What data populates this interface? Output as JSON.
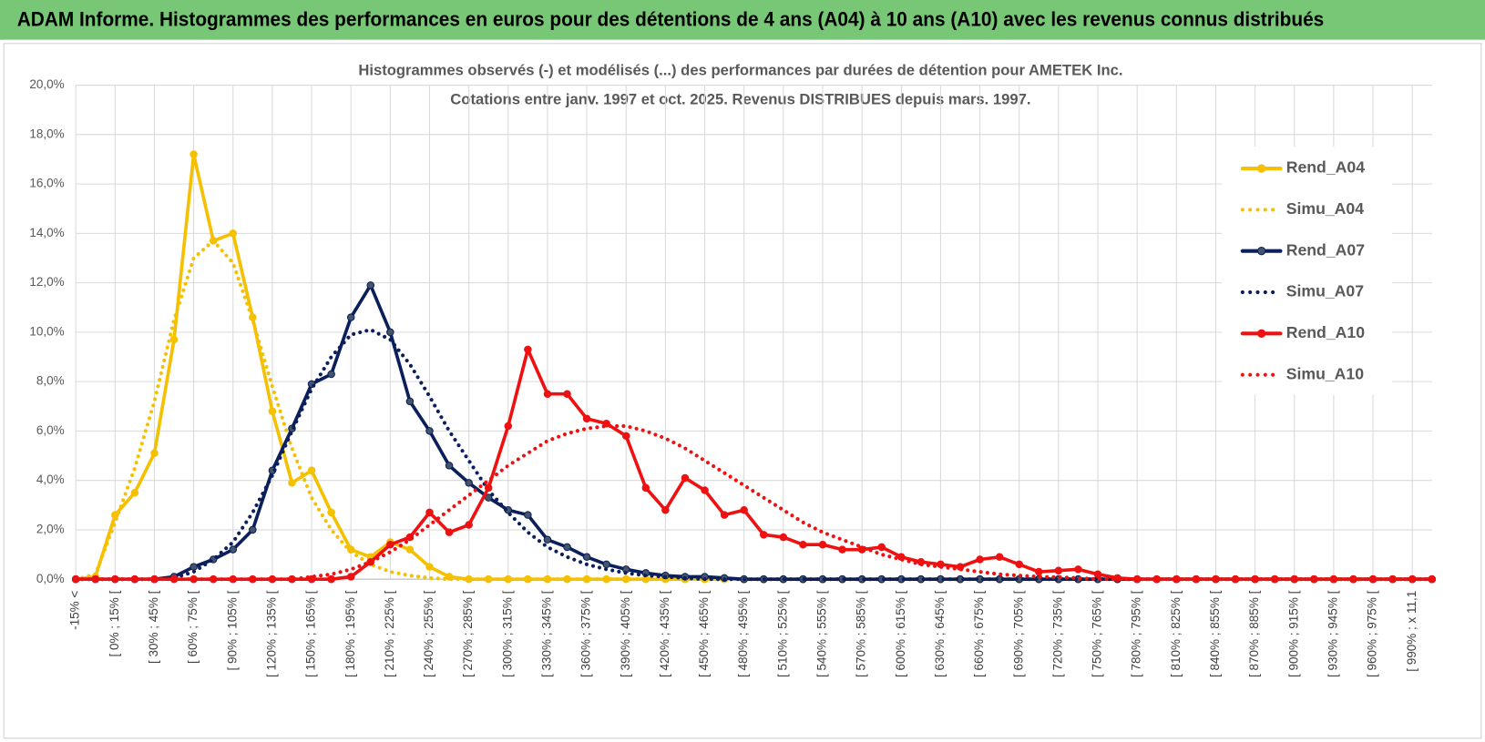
{
  "header": "ADAM Informe. Histogrammes des performances en euros pour des détentions de 4 ans (A04) à 10 ans (A10) avec les revenus connus distribués",
  "chart_data": {
    "type": "line",
    "title": "Histogrammes observés (-) et modélisés (...) des performances par durées de détention pour AMETEK Inc.",
    "subtitle": "Cotations entre janv. 1997 et oct. 2025.  Revenus DISTRIBUES depuis mars. 1997.",
    "categories": [
      "-15% <",
      null,
      "[ 0% ; 15% [",
      null,
      "[ 30% ; 45% [",
      null,
      "[ 60% ; 75% [",
      null,
      "[ 90% ; 105% [",
      null,
      "[ 120% ; 135% [",
      null,
      "[ 150% ; 165% [",
      null,
      "[ 180% ; 195% [",
      null,
      "[ 210% ; 225% [",
      null,
      "[ 240% ; 255% [",
      null,
      "[ 270% ; 285% [",
      null,
      "[ 300% ; 315% [",
      null,
      "[ 330% ; 345% [",
      null,
      "[ 360% ; 375% [",
      null,
      "[ 390% ; 405% [",
      null,
      "[ 420% ; 435% [",
      null,
      "[ 450% ; 465% [",
      null,
      "[ 480% ; 495% [",
      null,
      "[ 510% ; 525% [",
      null,
      "[ 540% ; 555% [",
      null,
      "[ 570% ; 585% [",
      null,
      "[ 600% ; 615% [",
      null,
      "[ 630% ; 645% [",
      null,
      "[ 660% ; 675% [",
      null,
      "[ 690% ; 705% [",
      null,
      "[ 720% ; 735% [",
      null,
      "[ 750% ; 765% [",
      null,
      "[ 780% ; 795% [",
      null,
      "[ 810% ; 825% [",
      null,
      "[ 840% ; 855% [",
      null,
      "[ 870% ; 885% [",
      null,
      "[ 900% ; 915% [",
      null,
      "[ 930% ; 945% [",
      null,
      "[ 960% ; 975% [",
      null,
      "[ 990% ; x 11,1",
      null
    ],
    "series": [
      {
        "name": "Rend_A04",
        "color": "#f5c000",
        "style": "solid",
        "values": [
          0,
          0.1,
          2.6,
          3.5,
          5.1,
          9.7,
          17.2,
          13.7,
          14.0,
          10.6,
          6.8,
          3.9,
          4.4,
          2.7,
          1.2,
          0.9,
          1.5,
          1.2,
          0.5,
          0.1,
          0,
          0,
          0,
          0,
          0,
          0,
          0,
          0,
          0,
          0,
          0,
          0,
          0,
          0,
          0,
          0,
          0,
          0,
          0,
          0,
          0,
          0,
          0,
          0,
          0,
          0,
          0,
          0,
          0,
          0,
          0,
          0,
          0,
          0,
          0,
          0,
          0,
          0,
          0,
          0,
          0,
          0,
          0,
          0,
          0,
          0,
          0,
          0,
          0,
          0
        ]
      },
      {
        "name": "Simu_A04",
        "color": "#f5c000",
        "style": "dotted",
        "values": [
          0,
          0.2,
          2.3,
          4.5,
          7.2,
          10.5,
          13.0,
          13.7,
          12.8,
          10.5,
          7.8,
          5.3,
          3.3,
          2.0,
          1.1,
          0.6,
          0.3,
          0.15,
          0.05,
          0,
          0,
          0,
          0,
          0,
          0,
          0,
          0,
          0,
          0,
          0,
          0,
          0,
          0,
          0,
          0,
          0,
          0,
          0,
          0,
          0,
          0,
          0,
          0,
          0,
          0,
          0,
          0,
          0,
          0,
          0,
          0,
          0,
          0,
          0,
          0,
          0,
          0,
          0,
          0,
          0,
          0,
          0,
          0,
          0,
          0,
          0,
          0,
          0,
          0,
          0
        ]
      },
      {
        "name": "Rend_A07",
        "color": "#0b1f5c",
        "style": "solid",
        "values": [
          0,
          0,
          0,
          0,
          0,
          0.1,
          0.5,
          0.8,
          1.2,
          2.0,
          4.4,
          6.1,
          7.9,
          8.3,
          10.6,
          11.9,
          10.0,
          7.2,
          6.0,
          4.6,
          3.9,
          3.3,
          2.8,
          2.6,
          1.6,
          1.3,
          0.9,
          0.6,
          0.4,
          0.25,
          0.15,
          0.1,
          0.1,
          0.05,
          0,
          0,
          0,
          0,
          0,
          0,
          0,
          0,
          0,
          0,
          0,
          0,
          0,
          0,
          0,
          0,
          0,
          0,
          0,
          0,
          0,
          0,
          0,
          0,
          0,
          0,
          0,
          0,
          0,
          0,
          0,
          0,
          0,
          0,
          0,
          0
        ]
      },
      {
        "name": "Simu_A07",
        "color": "#0b1f5c",
        "style": "dotted",
        "values": [
          0,
          0,
          0,
          0,
          0,
          0.05,
          0.3,
          0.8,
          1.5,
          2.7,
          4.2,
          6.0,
          7.7,
          9.0,
          9.9,
          10.1,
          9.7,
          8.7,
          7.4,
          6.0,
          4.8,
          3.6,
          2.7,
          1.9,
          1.3,
          0.9,
          0.6,
          0.4,
          0.25,
          0.15,
          0.1,
          0.05,
          0,
          0,
          0,
          0,
          0,
          0,
          0,
          0,
          0,
          0,
          0,
          0,
          0,
          0,
          0,
          0,
          0,
          0,
          0,
          0,
          0,
          0,
          0,
          0,
          0,
          0,
          0,
          0,
          0,
          0,
          0,
          0,
          0,
          0,
          0,
          0,
          0,
          0
        ]
      },
      {
        "name": "Rend_A10",
        "color": "#ee1111",
        "style": "solid",
        "values": [
          0,
          0,
          0,
          0,
          0,
          0,
          0,
          0,
          0,
          0,
          0,
          0,
          0,
          0,
          0.1,
          0.7,
          1.4,
          1.7,
          2.7,
          1.9,
          2.2,
          3.7,
          6.2,
          9.3,
          7.5,
          7.5,
          6.5,
          6.3,
          5.8,
          3.7,
          2.8,
          4.1,
          3.6,
          2.6,
          2.8,
          1.8,
          1.7,
          1.4,
          1.4,
          1.2,
          1.2,
          1.3,
          0.9,
          0.7,
          0.6,
          0.5,
          0.8,
          0.9,
          0.6,
          0.3,
          0.35,
          0.4,
          0.2,
          0.05,
          0,
          0,
          0,
          0,
          0,
          0,
          0,
          0,
          0,
          0,
          0,
          0,
          0,
          0,
          0,
          0
        ]
      },
      {
        "name": "Simu_A10",
        "color": "#ee1111",
        "style": "dotted",
        "values": [
          0,
          0,
          0,
          0,
          0,
          0,
          0,
          0,
          0,
          0,
          0,
          0,
          0.1,
          0.2,
          0.4,
          0.7,
          1.1,
          1.6,
          2.2,
          2.8,
          3.4,
          4.0,
          4.6,
          5.1,
          5.6,
          5.9,
          6.1,
          6.2,
          6.2,
          6.0,
          5.7,
          5.3,
          4.8,
          4.3,
          3.8,
          3.3,
          2.8,
          2.3,
          1.9,
          1.6,
          1.3,
          1.0,
          0.8,
          0.6,
          0.5,
          0.4,
          0.3,
          0.2,
          0.15,
          0.1,
          0.08,
          0.05,
          0,
          0,
          0,
          0,
          0,
          0,
          0,
          0,
          0,
          0,
          0,
          0,
          0,
          0,
          0,
          0,
          0,
          0
        ]
      }
    ],
    "ylim": [
      0,
      20
    ],
    "yticks": [
      {
        "value": 0,
        "label": "0,0%"
      },
      {
        "value": 2,
        "label": "2,0%"
      },
      {
        "value": 4,
        "label": "4,0%"
      },
      {
        "value": 6,
        "label": "6,0%"
      },
      {
        "value": 8,
        "label": "8,0%"
      },
      {
        "value": 10,
        "label": "10,0%"
      },
      {
        "value": 12,
        "label": "12,0%"
      },
      {
        "value": 14,
        "label": "14,0%"
      },
      {
        "value": 16,
        "label": "16,0%"
      },
      {
        "value": 18,
        "label": "18,0%"
      },
      {
        "value": 20,
        "label": "20,0%"
      }
    ],
    "grid": true,
    "legend": "right"
  }
}
